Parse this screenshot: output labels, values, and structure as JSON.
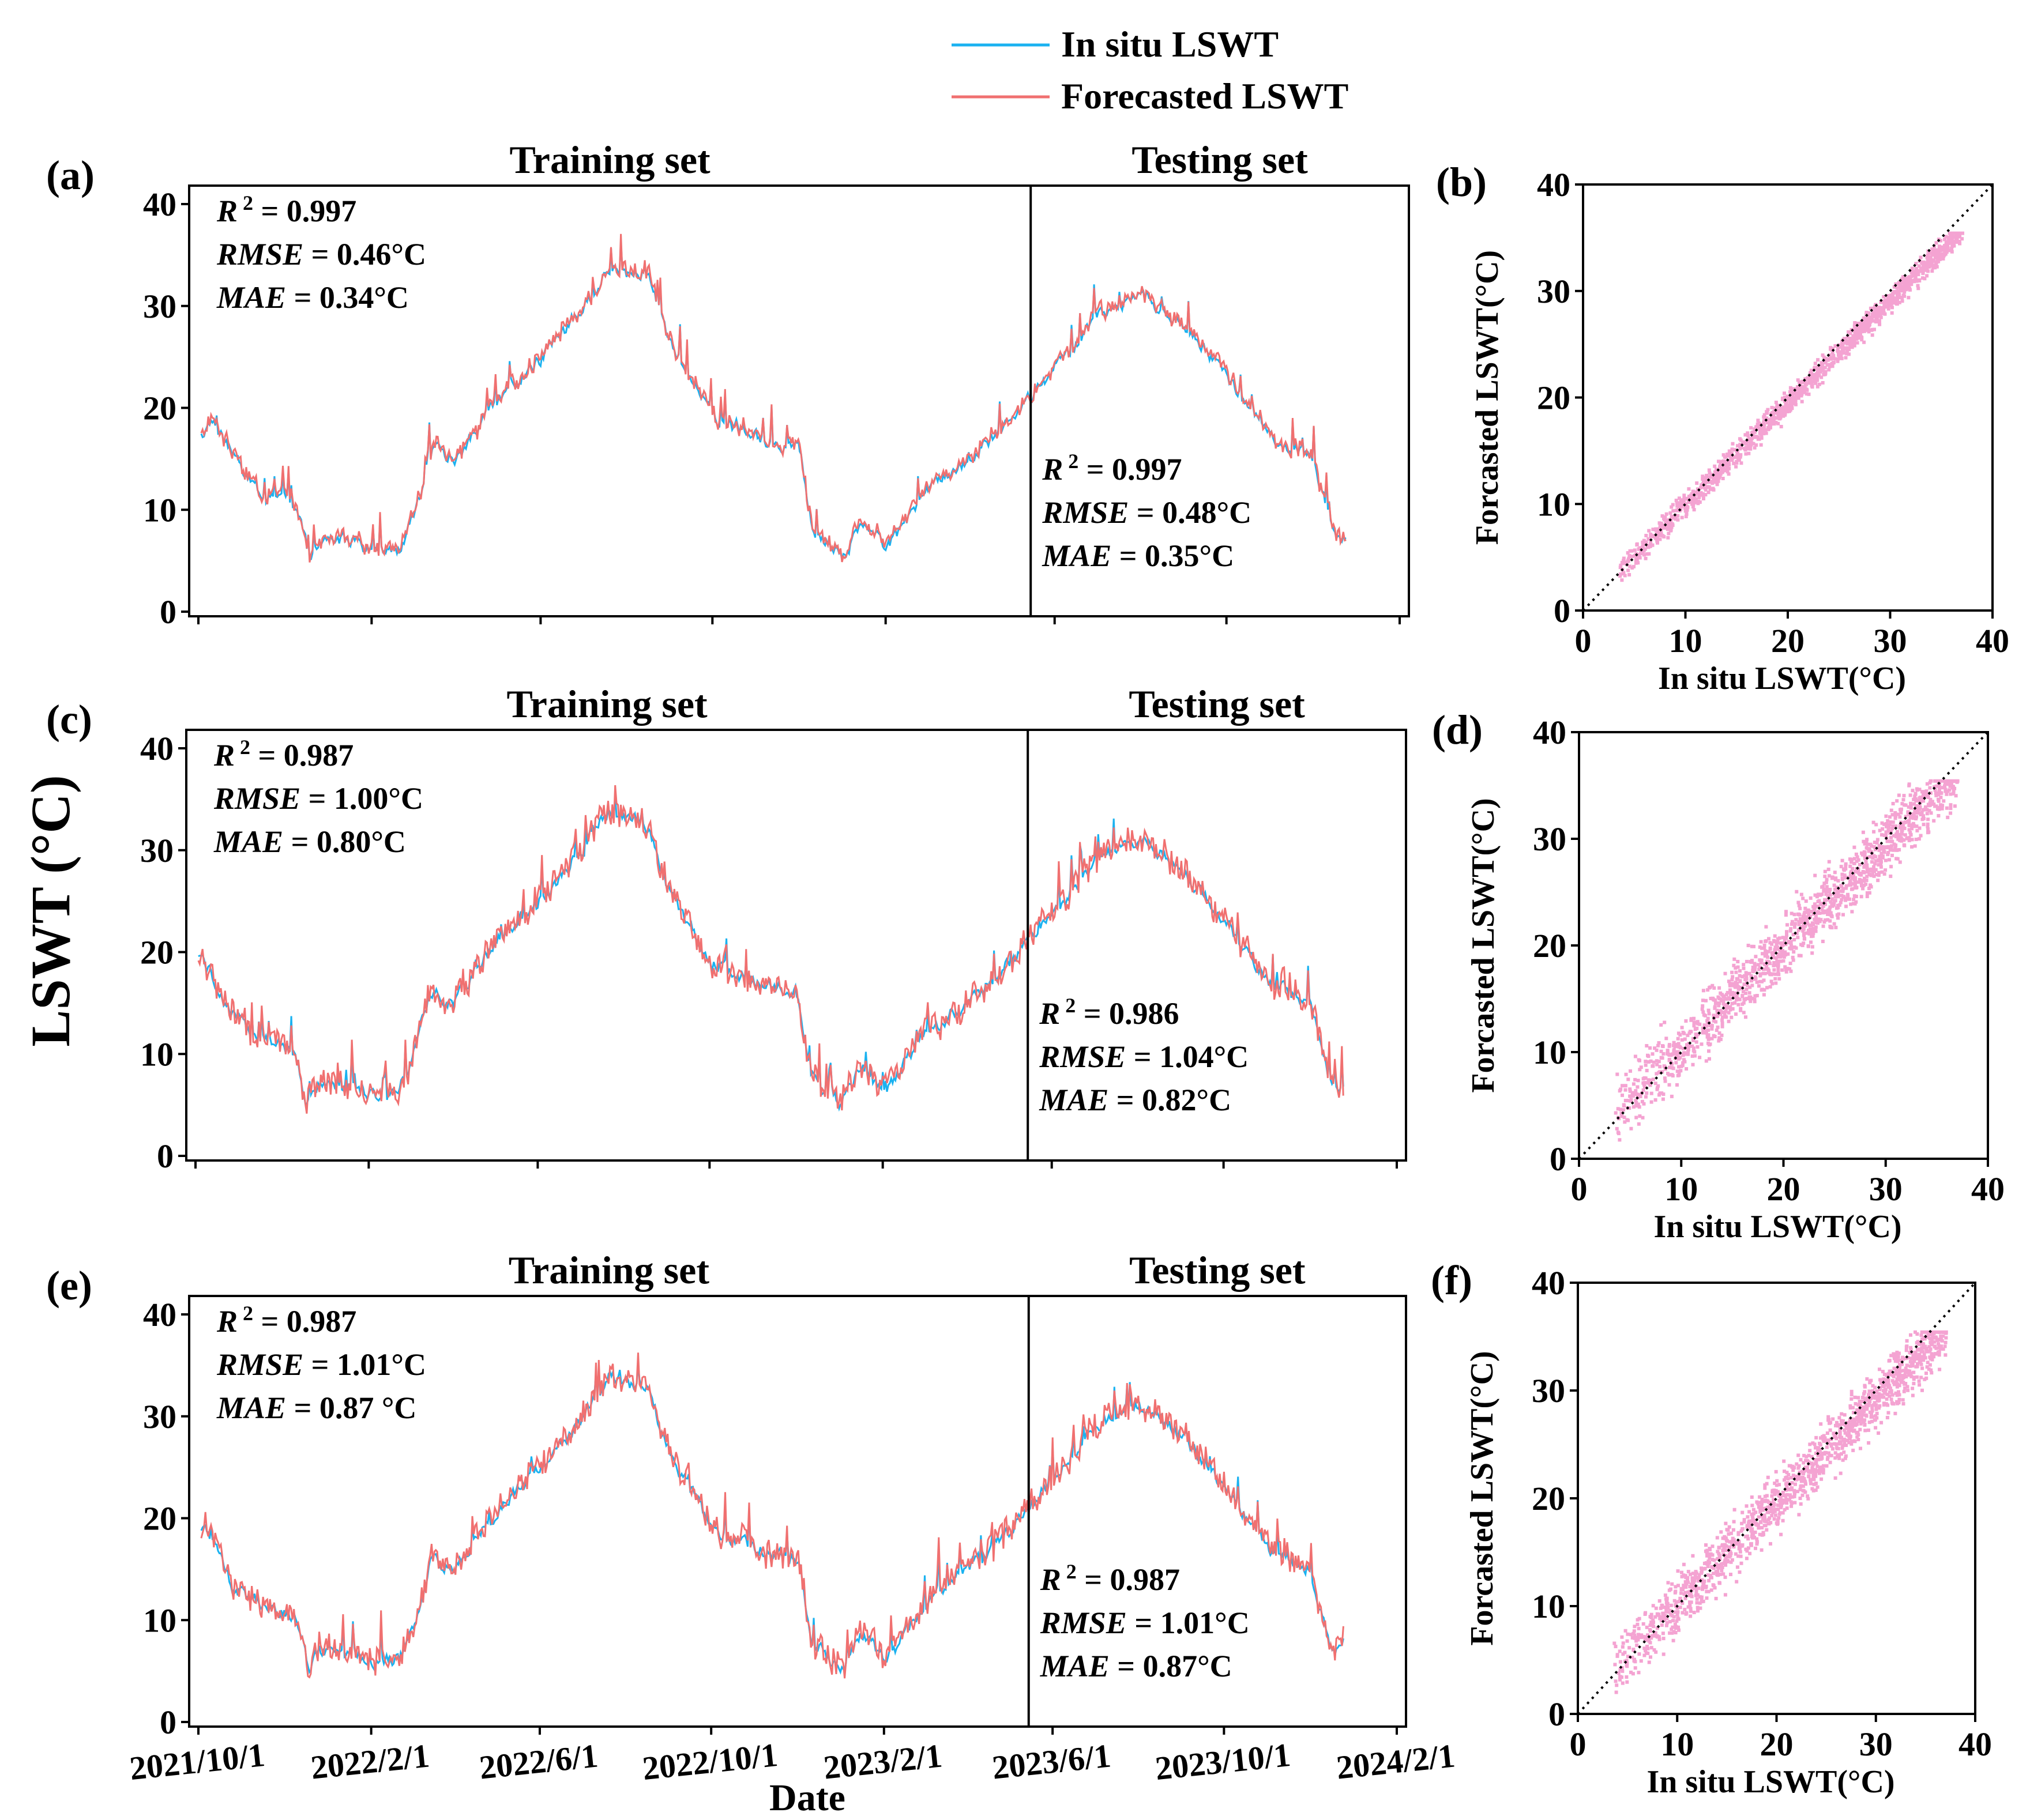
{
  "legend": {
    "items": [
      {
        "label": "In situ LSWT",
        "color": "#1ab2f0"
      },
      {
        "label": "Forecasted LSWT",
        "color": "#f07070"
      }
    ]
  },
  "shared": {
    "y_title": "LSWT (°C)",
    "x_title": "Date",
    "training_label": "Training set",
    "testing_label": "Testing set",
    "scatter_xlabel": "In situ LSWT(°C)",
    "scatter_ylabel": "Forcasted LSWT(°C)"
  },
  "chart_data": [
    {
      "type": "line",
      "panel": "(a)",
      "title_left": "Training set",
      "title_right": "Testing set",
      "x_range": [
        "2021/10/1",
        "2024/2/1"
      ],
      "split_date": "2023/5/15",
      "ylim": [
        0,
        40
      ],
      "yticks": [
        0,
        10,
        20,
        30,
        40
      ],
      "xticks": [
        "2021/10/1",
        "2022/2/1",
        "2022/6/1",
        "2022/10/1",
        "2023/2/1",
        "2023/6/1",
        "2023/10/1",
        "2024/2/1"
      ],
      "series_note": "daily series approximated from seasonal envelope",
      "seed": 3,
      "noise": 0.6,
      "train_stats": {
        "r2": "0.997",
        "rmse": "0.46°C",
        "mae": "0.34°C"
      },
      "test_stats": {
        "r2": "0.997",
        "rmse": "0.48°C",
        "mae": "0.35°C"
      },
      "envelope": [
        [
          "2021/10/3",
          17
        ],
        [
          "2021/10/10",
          19
        ],
        [
          "2021/10/25",
          15
        ],
        [
          "2021/11/10",
          12
        ],
        [
          "2021/11/25",
          11
        ],
        [
          "2021/12/10",
          10
        ],
        [
          "2021/12/18",
          5
        ],
        [
          "2021/12/25",
          7
        ],
        [
          "2022/1/15",
          7
        ],
        [
          "2022/2/1",
          6
        ],
        [
          "2022/2/20",
          6
        ],
        [
          "2022/3/1",
          9
        ],
        [
          "2022/3/15",
          16
        ],
        [
          "2022/4/1",
          15
        ],
        [
          "2022/5/1",
          21
        ],
        [
          "2022/6/1",
          25
        ],
        [
          "2022/7/1",
          30
        ],
        [
          "2022/7/20",
          34
        ],
        [
          "2022/8/1",
          33
        ],
        [
          "2022/8/15",
          33
        ],
        [
          "2022/9/1",
          26
        ],
        [
          "2022/10/1",
          19
        ],
        [
          "2022/11/1",
          17
        ],
        [
          "2022/12/1",
          16
        ],
        [
          "2022/12/10",
          8
        ],
        [
          "2023/1/1",
          5
        ],
        [
          "2023/1/15",
          9
        ],
        [
          "2023/2/1",
          6
        ],
        [
          "2023/3/1",
          12
        ],
        [
          "2023/4/1",
          15
        ],
        [
          "2023/5/1",
          19
        ],
        [
          "2023/6/1",
          24
        ],
        [
          "2023/7/1",
          29
        ],
        [
          "2023/8/1",
          31
        ],
        [
          "2023/9/1",
          28
        ],
        [
          "2023/10/1",
          23
        ],
        [
          "2023/11/1",
          17
        ],
        [
          "2023/12/1",
          15
        ],
        [
          "2023/12/15",
          7
        ],
        [
          "2023/12/25",
          7
        ]
      ]
    },
    {
      "type": "line",
      "panel": "(c)",
      "title_left": "Training set",
      "title_right": "Testing set",
      "x_range": [
        "2021/10/1",
        "2024/2/1"
      ],
      "split_date": "2023/5/15",
      "ylim": [
        0,
        40
      ],
      "yticks": [
        0,
        10,
        20,
        30,
        40
      ],
      "xticks": [
        "2021/10/1",
        "2022/2/1",
        "2022/6/1",
        "2022/10/1",
        "2023/2/1",
        "2023/6/1",
        "2023/10/1",
        "2024/2/1"
      ],
      "series_note": "daily series approximated from seasonal envelope",
      "seed": 7,
      "noise": 1.2,
      "train_stats": {
        "r2": "0.987",
        "rmse": "1.00°C",
        "mae": "0.80°C"
      },
      "test_stats": {
        "r2": "0.986",
        "rmse": "1.04°C",
        "mae": "0.82°C"
      },
      "envelope": [
        [
          "2021/10/3",
          20
        ],
        [
          "2021/10/10",
          18
        ],
        [
          "2021/10/25",
          14
        ],
        [
          "2021/11/10",
          12
        ],
        [
          "2021/11/25",
          11
        ],
        [
          "2021/12/10",
          10
        ],
        [
          "2021/12/18",
          5
        ],
        [
          "2021/12/25",
          7
        ],
        [
          "2022/1/15",
          7
        ],
        [
          "2022/2/1",
          6
        ],
        [
          "2022/2/20",
          6
        ],
        [
          "2022/3/1",
          9
        ],
        [
          "2022/3/15",
          16
        ],
        [
          "2022/4/1",
          15
        ],
        [
          "2022/5/1",
          21
        ],
        [
          "2022/6/1",
          25
        ],
        [
          "2022/7/1",
          30
        ],
        [
          "2022/7/20",
          34
        ],
        [
          "2022/8/1",
          33
        ],
        [
          "2022/8/15",
          33
        ],
        [
          "2022/9/1",
          26
        ],
        [
          "2022/10/1",
          19
        ],
        [
          "2022/11/1",
          17
        ],
        [
          "2022/12/1",
          16
        ],
        [
          "2022/12/10",
          8
        ],
        [
          "2023/1/1",
          5
        ],
        [
          "2023/1/15",
          9
        ],
        [
          "2023/2/1",
          6
        ],
        [
          "2023/3/1",
          12
        ],
        [
          "2023/4/1",
          15
        ],
        [
          "2023/5/1",
          19
        ],
        [
          "2023/6/1",
          24
        ],
        [
          "2023/7/1",
          29
        ],
        [
          "2023/8/1",
          31
        ],
        [
          "2023/9/1",
          28
        ],
        [
          "2023/10/1",
          23
        ],
        [
          "2023/11/1",
          17
        ],
        [
          "2023/12/1",
          15
        ],
        [
          "2023/12/15",
          7
        ],
        [
          "2023/12/25",
          7
        ]
      ]
    },
    {
      "type": "line",
      "panel": "(e)",
      "title_left": "Training set",
      "title_right": "Testing set",
      "x_range": [
        "2021/10/1",
        "2024/2/1"
      ],
      "split_date": "2023/5/15",
      "ylim": [
        0,
        40
      ],
      "yticks": [
        0,
        10,
        20,
        30,
        40
      ],
      "xticks": [
        "2021/10/1",
        "2022/2/1",
        "2022/6/1",
        "2022/10/1",
        "2023/2/1",
        "2023/6/1",
        "2023/10/1",
        "2024/2/1"
      ],
      "series_note": "daily series approximated from seasonal envelope",
      "seed": 11,
      "noise": 1.2,
      "train_stats": {
        "r2": "0.987",
        "rmse": "1.01°C",
        "mae": "0.87 °C"
      },
      "test_stats": {
        "r2": "0.987",
        "rmse": "1.01°C",
        "mae": "0.87°C"
      },
      "envelope": [
        [
          "2021/10/3",
          19
        ],
        [
          "2021/10/10",
          18
        ],
        [
          "2021/10/25",
          13
        ],
        [
          "2021/11/10",
          12
        ],
        [
          "2021/11/25",
          11
        ],
        [
          "2021/12/10",
          10
        ],
        [
          "2021/12/18",
          5
        ],
        [
          "2021/12/25",
          7
        ],
        [
          "2022/1/15",
          7
        ],
        [
          "2022/2/1",
          6
        ],
        [
          "2022/2/20",
          6
        ],
        [
          "2022/3/1",
          9
        ],
        [
          "2022/3/15",
          16
        ],
        [
          "2022/4/1",
          15
        ],
        [
          "2022/5/1",
          21
        ],
        [
          "2022/6/1",
          25
        ],
        [
          "2022/7/1",
          30
        ],
        [
          "2022/7/20",
          34
        ],
        [
          "2022/8/1",
          33
        ],
        [
          "2022/8/15",
          33
        ],
        [
          "2022/9/1",
          26
        ],
        [
          "2022/10/1",
          19
        ],
        [
          "2022/11/1",
          17
        ],
        [
          "2022/12/1",
          16
        ],
        [
          "2022/12/10",
          8
        ],
        [
          "2023/1/1",
          5
        ],
        [
          "2023/1/15",
          9
        ],
        [
          "2023/2/1",
          6
        ],
        [
          "2023/3/1",
          12
        ],
        [
          "2023/4/1",
          15
        ],
        [
          "2023/5/1",
          19
        ],
        [
          "2023/6/1",
          24
        ],
        [
          "2023/7/1",
          29
        ],
        [
          "2023/8/1",
          31
        ],
        [
          "2023/9/1",
          28
        ],
        [
          "2023/10/1",
          23
        ],
        [
          "2023/11/1",
          17
        ],
        [
          "2023/12/1",
          15
        ],
        [
          "2023/12/15",
          7
        ],
        [
          "2023/12/25",
          7
        ]
      ]
    },
    {
      "type": "scatter",
      "panel": "(b)",
      "xlabel": "In situ LSWT(°C)",
      "ylabel": "Forcasted LSWT(°C)",
      "xlim": [
        0,
        40
      ],
      "ylim": [
        0,
        40
      ],
      "xticks": [
        0,
        10,
        20,
        30,
        40
      ],
      "yticks": [
        0,
        10,
        20,
        30,
        40
      ],
      "point_color": "#f4a3d2",
      "x_extent": [
        3.5,
        37
      ],
      "slope": 0.96,
      "intercept": 0.4,
      "spread": 0.7,
      "seed": 5,
      "reference_line": "1:1"
    },
    {
      "type": "scatter",
      "panel": "(d)",
      "xlabel": "In situ LSWT(°C)",
      "ylabel": "Forcasted LSWT(°C)",
      "xlim": [
        0,
        40
      ],
      "ylim": [
        0,
        40
      ],
      "xticks": [
        0,
        10,
        20,
        30,
        40
      ],
      "yticks": [
        0,
        10,
        20,
        30,
        40
      ],
      "point_color": "#f4a3d2",
      "x_extent": [
        3.5,
        37
      ],
      "slope": 0.96,
      "intercept": 0.9,
      "spread": 1.8,
      "seed": 9,
      "reference_line": "1:1"
    },
    {
      "type": "scatter",
      "panel": "(f)",
      "xlabel": "In situ LSWT(°C)",
      "ylabel": "Forcasted LSWT(°C)",
      "xlim": [
        0,
        40
      ],
      "ylim": [
        0,
        40
      ],
      "xticks": [
        0,
        10,
        20,
        30,
        40
      ],
      "yticks": [
        0,
        10,
        20,
        30,
        40
      ],
      "point_color": "#f4a3d2",
      "x_extent": [
        3.5,
        37
      ],
      "slope": 0.95,
      "intercept": 0.7,
      "spread": 1.6,
      "seed": 13,
      "reference_line": "1:1"
    }
  ]
}
